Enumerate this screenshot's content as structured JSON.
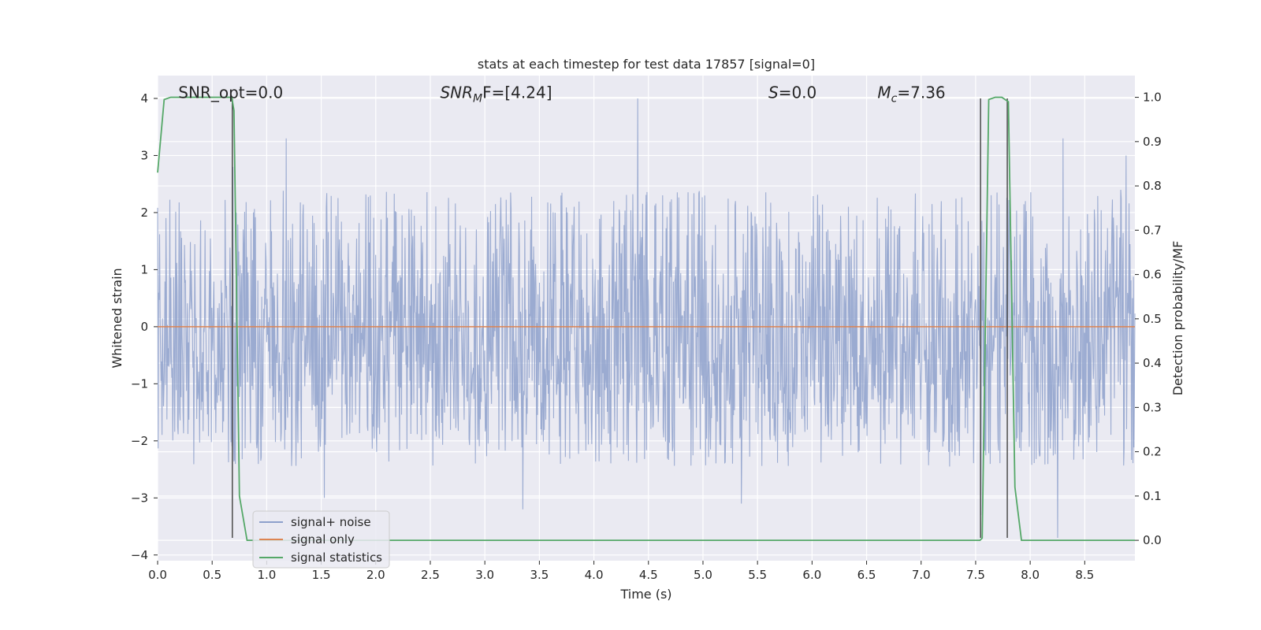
{
  "chart_data": {
    "type": "line",
    "title": "stats at each timestep for test data 17857 [signal=0]",
    "xlabel": "Time (s)",
    "ylabel": "Whitened strain",
    "ylabel_right": "Detection probability/MF",
    "xlim": [
      0,
      8.96
    ],
    "ylim": [
      -4.1,
      4.4
    ],
    "ylim_right": [
      -0.046,
      1.049
    ],
    "x_ticks": [
      0.0,
      0.5,
      1.0,
      1.5,
      2.0,
      2.5,
      3.0,
      3.5,
      4.0,
      4.5,
      5.0,
      5.5,
      6.0,
      6.5,
      7.0,
      7.5,
      8.0,
      8.5
    ],
    "x_tick_labels": [
      "0.0",
      "0.5",
      "1.0",
      "1.5",
      "2.0",
      "2.5",
      "3.0",
      "3.5",
      "4.0",
      "4.5",
      "5.0",
      "5.5",
      "6.0",
      "6.5",
      "7.0",
      "7.5",
      "8.0",
      "8.5"
    ],
    "y_ticks": [
      -4,
      -3,
      -2,
      -1,
      0,
      1,
      2,
      3,
      4
    ],
    "y_tick_labels": [
      "−4",
      "−3",
      "−2",
      "−1",
      "0",
      "1",
      "2",
      "3",
      "4"
    ],
    "y_right_ticks": [
      0.0,
      0.1,
      0.2,
      0.3,
      0.4,
      0.5,
      0.6,
      0.7,
      0.8,
      0.9,
      1.0
    ],
    "y_right_tick_labels": [
      "0.0",
      "0.1",
      "0.2",
      "0.3",
      "0.4",
      "0.5",
      "0.6",
      "0.7",
      "0.8",
      "0.9",
      "1.0"
    ],
    "grid": true,
    "annotations": [
      {
        "key": "snr-opt",
        "text": "SNR_opt=0.0",
        "x": 0.19,
        "y": 4.1
      },
      {
        "key": "snr-mf",
        "text": "SNR_MF=[4.24]",
        "x": 2.59,
        "y": 4.1,
        "display": {
          "base": "SNR",
          "sub": "M",
          "rest": "F=[4.24]"
        }
      },
      {
        "key": "s",
        "text": "S=0.0",
        "x": 5.6,
        "y": 4.1,
        "display": {
          "base": "S",
          "sub": "",
          "rest": "=0.0"
        }
      },
      {
        "key": "mc",
        "text": "M_c=7.36",
        "x": 6.6,
        "y": 4.1,
        "display": {
          "base": "M",
          "sub": "c",
          "rest": "=7.36"
        }
      }
    ],
    "vertical_lines": [
      {
        "x": 0.685,
        "y_from": -3.7,
        "y_to": 4.0
      },
      {
        "x": 7.545,
        "y_from": -3.7,
        "y_to": 4.0
      },
      {
        "x": 7.79,
        "y_from": -3.7,
        "y_to": 4.0
      }
    ],
    "series": [
      {
        "name": "signal+ noise",
        "color": "#8da0cb",
        "axis": "left",
        "style": "dense-noise",
        "n_samples": 2000,
        "core_bounds": [
          -1.4,
          0.95
        ],
        "typical_extremes": [
          -2.4,
          2.4
        ],
        "notable_peaks": [
          {
            "x": 0.69,
            "y": 2.8
          },
          {
            "x": 1.18,
            "y": 3.3
          },
          {
            "x": 1.53,
            "y": -3.0
          },
          {
            "x": 3.35,
            "y": -3.2
          },
          {
            "x": 4.4,
            "y": 4.0
          },
          {
            "x": 5.35,
            "y": -3.1
          },
          {
            "x": 7.55,
            "y": -3.3
          },
          {
            "x": 8.25,
            "y": -3.7
          },
          {
            "x": 8.3,
            "y": 3.3
          },
          {
            "x": 8.88,
            "y": 3.0
          }
        ]
      },
      {
        "name": "signal only",
        "color": "#dd8452",
        "axis": "left",
        "x": [
          0.0,
          8.96
        ],
        "y": [
          0.0,
          0.0
        ]
      },
      {
        "name": "signal statistics",
        "color": "#55a868",
        "axis": "right",
        "x": [
          0.0,
          0.06,
          0.12,
          0.2,
          0.5,
          0.68,
          0.7,
          0.75,
          0.82,
          0.88,
          2.0,
          5.0,
          7.5,
          7.54,
          7.56,
          7.62,
          7.68,
          7.74,
          7.8,
          7.86,
          7.92,
          7.97,
          8.5,
          8.96
        ],
        "y": [
          0.83,
          0.995,
          1.0,
          1.0,
          1.0,
          1.0,
          0.97,
          0.1,
          0.0,
          0.0,
          0.0,
          0.0,
          0.0,
          0.0,
          0.005,
          0.995,
          1.0,
          1.0,
          0.99,
          0.12,
          0.0,
          0.0,
          0.0,
          0.0
        ]
      }
    ],
    "legend": {
      "position": "lower-left",
      "entries": [
        {
          "label": "signal+ noise",
          "color": "#8da0cb"
        },
        {
          "label": "signal only",
          "color": "#dd8452"
        },
        {
          "label": "signal statistics",
          "color": "#55a868"
        }
      ]
    },
    "colors": {
      "background": "#eaeaf2",
      "grid": "#ffffff",
      "vertical_line": "#4c4c4c"
    }
  }
}
